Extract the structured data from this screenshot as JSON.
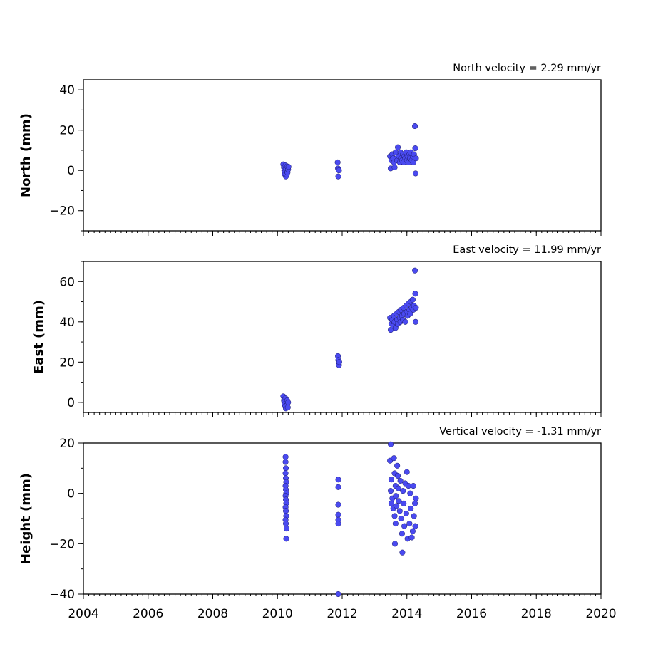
{
  "chart_data": [
    {
      "type": "scatter",
      "panel": "north",
      "annotation": "North velocity = 2.29 mm/yr",
      "ylabel": "North (mm)",
      "xlim": [
        2004,
        2020
      ],
      "ylim": [
        -30,
        45
      ],
      "yticks": [
        40,
        20,
        0,
        -20
      ],
      "ytick_labels": [
        "40",
        "20",
        "0",
        "−20"
      ],
      "x_major_ticks": [
        2004,
        2006,
        2008,
        2010,
        2012,
        2014,
        2016,
        2018,
        2020
      ],
      "x_tick_labels": [],
      "marker_color": "#4a4af0",
      "points": [
        [
          2010.18,
          3
        ],
        [
          2010.2,
          1.5
        ],
        [
          2010.21,
          0
        ],
        [
          2010.22,
          -1
        ],
        [
          2010.23,
          -2
        ],
        [
          2010.25,
          2.5
        ],
        [
          2010.26,
          -3
        ],
        [
          2010.27,
          0.5
        ],
        [
          2010.28,
          1
        ],
        [
          2010.29,
          -2
        ],
        [
          2010.3,
          2
        ],
        [
          2010.31,
          -1
        ],
        [
          2010.33,
          0.5
        ],
        [
          2010.34,
          1.8
        ],
        [
          2011.86,
          4
        ],
        [
          2011.87,
          1
        ],
        [
          2011.88,
          -3
        ],
        [
          2011.89,
          0.5
        ],
        [
          2011.9,
          0
        ],
        [
          2013.48,
          7
        ],
        [
          2013.5,
          1
        ],
        [
          2013.52,
          5
        ],
        [
          2013.55,
          8
        ],
        [
          2013.58,
          6
        ],
        [
          2013.6,
          4
        ],
        [
          2013.62,
          1.5
        ],
        [
          2013.65,
          9
        ],
        [
          2013.68,
          6
        ],
        [
          2013.7,
          5
        ],
        [
          2013.72,
          11.5
        ],
        [
          2013.75,
          7
        ],
        [
          2013.78,
          4
        ],
        [
          2013.8,
          9
        ],
        [
          2013.82,
          6
        ],
        [
          2013.85,
          5
        ],
        [
          2013.88,
          8
        ],
        [
          2013.9,
          4
        ],
        [
          2013.92,
          7
        ],
        [
          2013.95,
          6
        ],
        [
          2013.98,
          9
        ],
        [
          2014.0,
          5
        ],
        [
          2014.02,
          7
        ],
        [
          2014.05,
          4
        ],
        [
          2014.08,
          8
        ],
        [
          2014.1,
          6
        ],
        [
          2014.12,
          9
        ],
        [
          2014.15,
          5
        ],
        [
          2014.18,
          7
        ],
        [
          2014.2,
          4
        ],
        [
          2014.22,
          8
        ],
        [
          2014.25,
          22
        ],
        [
          2014.26,
          11
        ],
        [
          2014.27,
          -1.5
        ],
        [
          2014.28,
          6
        ]
      ]
    },
    {
      "type": "scatter",
      "panel": "east",
      "annotation": "East velocity = 11.99 mm/yr",
      "ylabel": "East (mm)",
      "xlim": [
        2004,
        2020
      ],
      "ylim": [
        -5,
        70
      ],
      "yticks": [
        60,
        40,
        20,
        0
      ],
      "ytick_labels": [
        "60",
        "40",
        "20",
        "0"
      ],
      "x_major_ticks": [
        2004,
        2006,
        2008,
        2010,
        2012,
        2014,
        2016,
        2018,
        2020
      ],
      "x_tick_labels": [],
      "marker_color": "#4a4af0",
      "points": [
        [
          2010.18,
          3
        ],
        [
          2010.2,
          1
        ],
        [
          2010.21,
          0
        ],
        [
          2010.22,
          -1
        ],
        [
          2010.24,
          -2
        ],
        [
          2010.25,
          2
        ],
        [
          2010.26,
          -3
        ],
        [
          2010.28,
          0.5
        ],
        [
          2010.29,
          -1.5
        ],
        [
          2010.3,
          1
        ],
        [
          2010.32,
          -2.5
        ],
        [
          2010.33,
          0
        ],
        [
          2011.87,
          23
        ],
        [
          2011.88,
          21
        ],
        [
          2011.89,
          19.5
        ],
        [
          2011.9,
          18.5
        ],
        [
          2011.91,
          20
        ],
        [
          2013.48,
          42
        ],
        [
          2013.5,
          36
        ],
        [
          2013.52,
          39
        ],
        [
          2013.55,
          41
        ],
        [
          2013.58,
          38
        ],
        [
          2013.6,
          43
        ],
        [
          2013.62,
          40
        ],
        [
          2013.65,
          37
        ],
        [
          2013.68,
          44
        ],
        [
          2013.7,
          41
        ],
        [
          2013.72,
          39
        ],
        [
          2013.75,
          45
        ],
        [
          2013.78,
          42
        ],
        [
          2013.8,
          40
        ],
        [
          2013.82,
          46
        ],
        [
          2013.85,
          43
        ],
        [
          2013.88,
          41
        ],
        [
          2013.9,
          47
        ],
        [
          2013.92,
          44
        ],
        [
          2013.95,
          40
        ],
        [
          2013.98,
          48
        ],
        [
          2014.0,
          45
        ],
        [
          2014.02,
          43
        ],
        [
          2014.05,
          49
        ],
        [
          2014.08,
          46
        ],
        [
          2014.1,
          44
        ],
        [
          2014.12,
          50
        ],
        [
          2014.15,
          47
        ],
        [
          2014.18,
          51
        ],
        [
          2014.2,
          46
        ],
        [
          2014.22,
          48
        ],
        [
          2014.25,
          65.5
        ],
        [
          2014.26,
          54
        ],
        [
          2014.27,
          40
        ],
        [
          2014.28,
          47
        ]
      ]
    },
    {
      "type": "scatter",
      "panel": "height",
      "annotation": "Vertical velocity = -1.31 mm/yr",
      "ylabel": "Height (mm)",
      "xlim": [
        2004,
        2020
      ],
      "ylim": [
        -40,
        20
      ],
      "yticks": [
        20,
        0,
        -20,
        -40
      ],
      "ytick_labels": [
        "20",
        "0",
        "−20",
        "−40"
      ],
      "x_major_ticks": [
        2004,
        2006,
        2008,
        2010,
        2012,
        2014,
        2016,
        2018,
        2020
      ],
      "x_tick_labels": [
        "2004",
        "2006",
        "2008",
        "2010",
        "2012",
        "2014",
        "2016",
        "2018",
        "2020"
      ],
      "marker_color": "#4a4af0",
      "points": [
        [
          2010.25,
          14.5
        ],
        [
          2010.25,
          12.5
        ],
        [
          2010.26,
          10
        ],
        [
          2010.25,
          8
        ],
        [
          2010.26,
          6
        ],
        [
          2010.27,
          4.5
        ],
        [
          2010.25,
          3
        ],
        [
          2010.26,
          1.5
        ],
        [
          2010.27,
          0
        ],
        [
          2010.25,
          -1
        ],
        [
          2010.26,
          -2.5
        ],
        [
          2010.27,
          -4
        ],
        [
          2010.25,
          -5.5
        ],
        [
          2010.26,
          -7
        ],
        [
          2010.27,
          -9
        ],
        [
          2010.25,
          -10.5
        ],
        [
          2010.26,
          -12
        ],
        [
          2010.28,
          -14
        ],
        [
          2010.27,
          -18
        ],
        [
          2011.88,
          5.5
        ],
        [
          2011.88,
          2.5
        ],
        [
          2011.88,
          -4.5
        ],
        [
          2011.88,
          -8.5
        ],
        [
          2011.88,
          -10.5
        ],
        [
          2011.88,
          -12
        ],
        [
          2011.88,
          -40
        ],
        [
          2013.5,
          19.5
        ],
        [
          2013.48,
          13
        ],
        [
          2013.52,
          5.5
        ],
        [
          2013.5,
          1
        ],
        [
          2013.55,
          -2
        ],
        [
          2013.52,
          -4
        ],
        [
          2013.58,
          -6
        ],
        [
          2013.6,
          14
        ],
        [
          2013.62,
          8
        ],
        [
          2013.65,
          3
        ],
        [
          2013.66,
          -1
        ],
        [
          2013.68,
          -5
        ],
        [
          2013.62,
          -9
        ],
        [
          2013.65,
          -12
        ],
        [
          2013.63,
          -20
        ],
        [
          2013.7,
          11
        ],
        [
          2013.72,
          7
        ],
        [
          2013.74,
          2
        ],
        [
          2013.75,
          -3
        ],
        [
          2013.78,
          -7
        ],
        [
          2013.8,
          5
        ],
        [
          2013.82,
          -10
        ],
        [
          2013.85,
          -16
        ],
        [
          2013.86,
          -23.5
        ],
        [
          2013.88,
          1
        ],
        [
          2013.9,
          -4
        ],
        [
          2013.92,
          -13
        ],
        [
          2013.95,
          4
        ],
        [
          2013.98,
          -8
        ],
        [
          2014.0,
          8.5
        ],
        [
          2014.02,
          -18
        ],
        [
          2014.05,
          3
        ],
        [
          2014.08,
          -12
        ],
        [
          2014.1,
          0
        ],
        [
          2014.12,
          -6
        ],
        [
          2014.15,
          -17.5
        ],
        [
          2014.18,
          -15
        ],
        [
          2014.2,
          3
        ],
        [
          2014.22,
          -9
        ],
        [
          2014.25,
          -4
        ],
        [
          2014.26,
          -13
        ],
        [
          2014.28,
          -2
        ]
      ]
    }
  ]
}
